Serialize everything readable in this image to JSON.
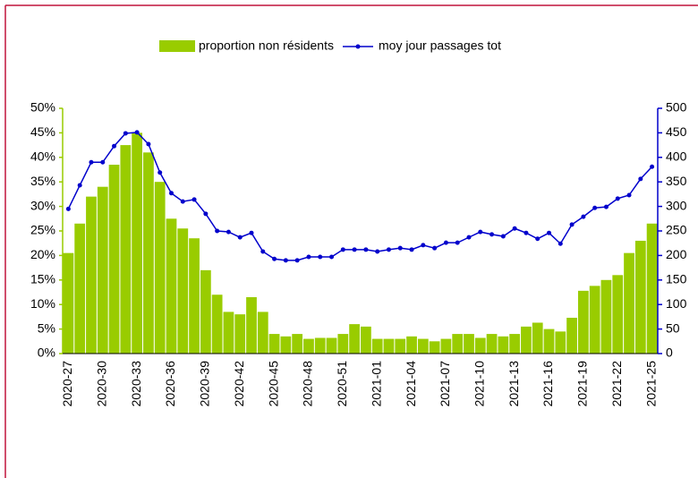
{
  "chart_data": {
    "type": "bar-line",
    "categories": [
      "2020-27",
      null,
      null,
      "2020-30",
      null,
      null,
      "2020-33",
      null,
      null,
      "2020-36",
      null,
      null,
      "2020-39",
      null,
      null,
      "2020-42",
      null,
      null,
      "2020-45",
      null,
      null,
      "2020-48",
      null,
      null,
      "2020-51",
      null,
      null,
      "2021-01",
      null,
      null,
      "2021-04",
      null,
      null,
      "2021-07",
      null,
      null,
      "2021-10",
      null,
      null,
      "2021-13",
      null,
      null,
      "2021-16",
      null,
      null,
      "2021-19",
      null,
      null,
      "2021-22",
      null,
      null,
      "2021-25"
    ],
    "series": [
      {
        "name": "proportion non résidents",
        "type": "bar",
        "color": "#99cc00",
        "values": [
          20.5,
          26.5,
          32,
          34,
          38.5,
          42.5,
          45,
          41,
          35,
          27.5,
          25.5,
          23.5,
          17,
          12,
          8.5,
          8,
          11.5,
          8.5,
          4,
          3.5,
          4,
          3,
          3.2,
          3.2,
          4,
          6,
          5.5,
          3,
          3,
          3,
          3.5,
          3,
          2.5,
          3,
          4,
          4,
          3.2,
          4,
          3.5,
          4,
          5.5,
          6.3,
          5,
          4.5,
          7.3,
          12.8,
          13.8,
          15,
          16,
          20.5,
          23,
          26.5
        ]
      },
      {
        "name": "moy jour passages tot",
        "type": "line",
        "axis": "y2",
        "color": "#0000cc",
        "values": [
          295,
          343,
          390,
          390,
          423,
          449,
          451,
          427,
          369,
          327,
          310,
          314,
          285,
          250,
          248,
          237,
          246,
          208,
          193,
          190,
          190,
          197,
          197,
          197,
          212,
          212,
          212,
          208,
          212,
          215,
          212,
          221,
          215,
          226,
          226,
          237,
          248,
          243,
          239,
          255,
          246,
          234,
          246,
          224,
          263,
          279,
          297,
          299,
          316,
          323,
          356,
          381
        ]
      }
    ],
    "ylim": [
      0,
      50
    ],
    "yticks": [
      {
        "value": 0,
        "label": "0%"
      },
      {
        "value": 5,
        "label": "5%"
      },
      {
        "value": 10,
        "label": "10%"
      },
      {
        "value": 15,
        "label": "15%"
      },
      {
        "value": 20,
        "label": "20%"
      },
      {
        "value": 25,
        "label": "25%"
      },
      {
        "value": 30,
        "label": "30%"
      },
      {
        "value": 35,
        "label": "35%"
      },
      {
        "value": 40,
        "label": "40%"
      },
      {
        "value": 45,
        "label": "45%"
      },
      {
        "value": 50,
        "label": "50%"
      }
    ],
    "y2lim": [
      0,
      500
    ],
    "y2ticks": [
      0,
      50,
      100,
      150,
      200,
      250,
      300,
      350,
      400,
      450,
      500
    ],
    "legend": "top"
  }
}
